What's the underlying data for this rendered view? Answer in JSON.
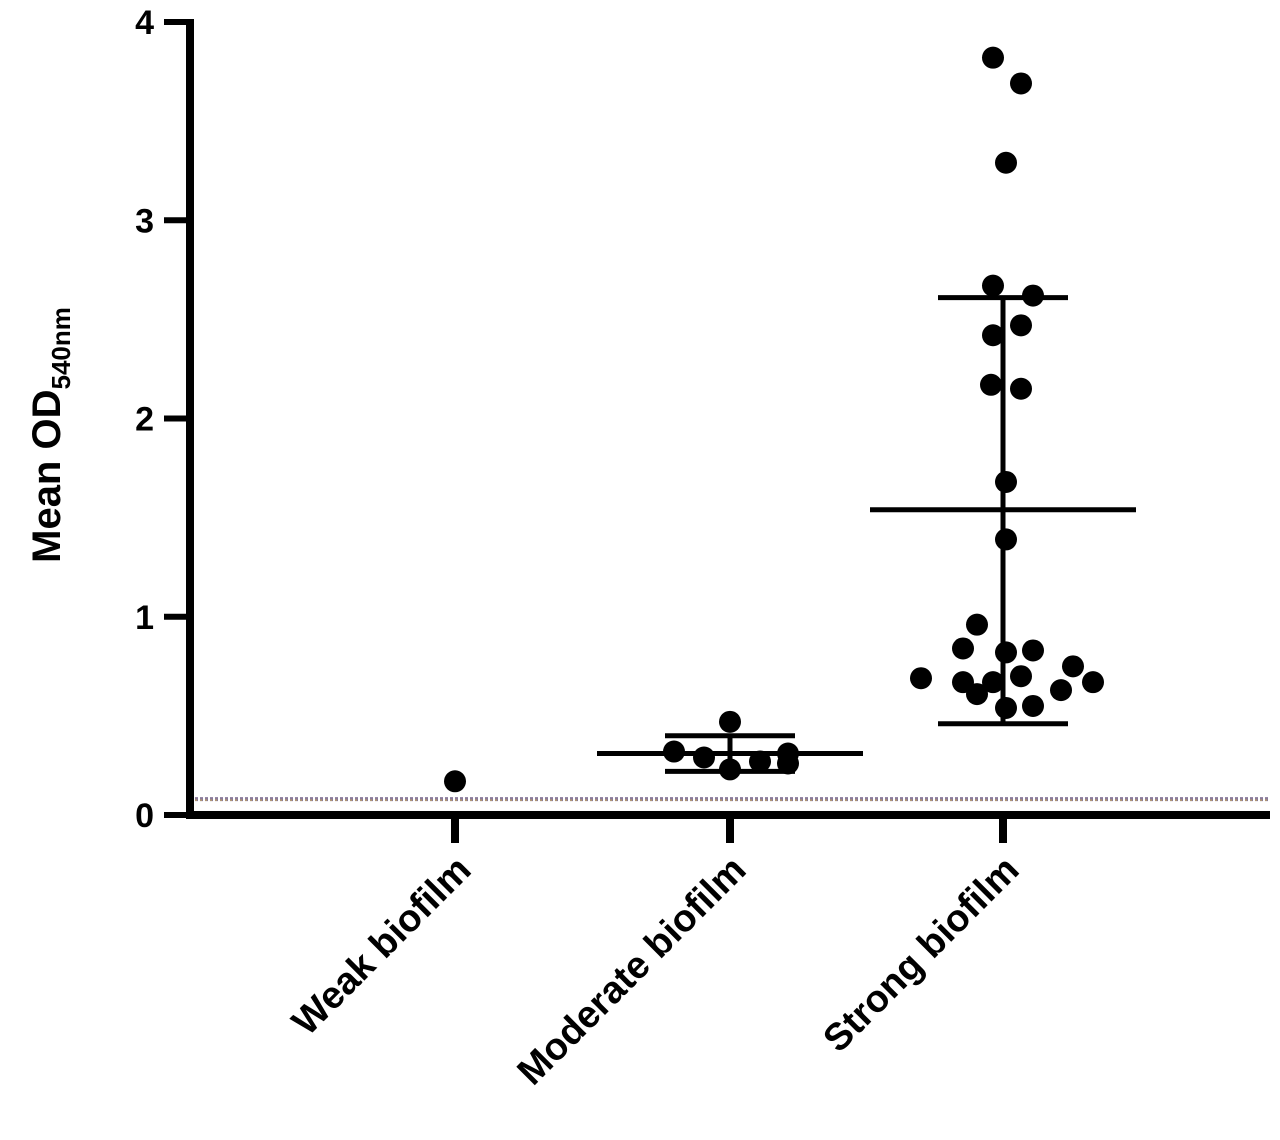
{
  "chart_data": {
    "type": "scatter",
    "title": "",
    "xlabel": "",
    "ylabel": "Mean OD",
    "ylabel_subscript": "540nm",
    "ylim": [
      0,
      4
    ],
    "yticks": [
      "0",
      "1",
      "2",
      "3",
      "4"
    ],
    "categories": [
      "Weak biofilm",
      "Moderate biofilm",
      "Strong biofilm"
    ],
    "cutoff": 0.08,
    "series": [
      {
        "category": "Weak biofilm",
        "values": [
          0.17
        ],
        "mean": null,
        "sd_low": null,
        "sd_high": null
      },
      {
        "category": "Moderate biofilm",
        "values": [
          0.47,
          0.32,
          0.29,
          0.23,
          0.27,
          0.26,
          0.31
        ],
        "mean": 0.31,
        "sd_low": 0.22,
        "sd_high": 0.4
      },
      {
        "category": "Strong biofilm",
        "values": [
          3.82,
          3.69,
          3.29,
          2.67,
          2.62,
          2.47,
          2.42,
          2.17,
          2.15,
          1.68,
          1.39,
          0.96,
          0.84,
          0.83,
          0.82,
          0.75,
          0.7,
          0.69,
          0.67,
          0.67,
          0.67,
          0.63,
          0.61,
          0.55,
          0.54
        ],
        "mean": 1.54,
        "sd_low": 0.46,
        "sd_high": 2.61
      }
    ],
    "colors": {
      "points": "#000000",
      "axis": "#000000",
      "cutoff_a": "#8a7a9a",
      "cutoff_b": "#b59b6a"
    }
  }
}
